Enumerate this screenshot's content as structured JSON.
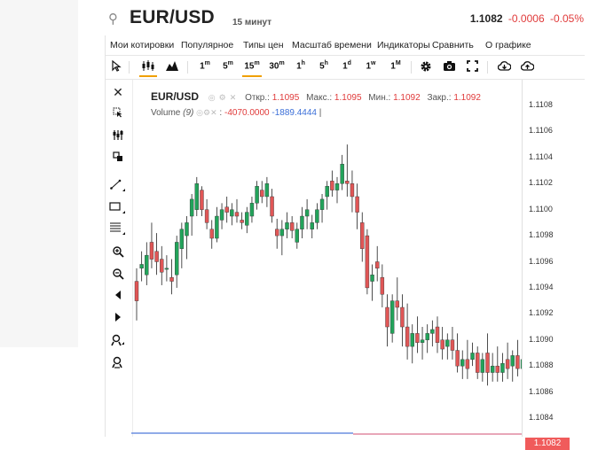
{
  "header": {
    "symbol": "EUR/USD",
    "interval": "15 минут",
    "last_price": "1.1082",
    "change": "-0.0006",
    "change_pct": "-0.05%"
  },
  "menu": [
    "Мои котировки",
    "Популярное",
    "Типы цен",
    "Масштаб времени",
    "Индикаторы",
    "Сравнить",
    "О графике"
  ],
  "timeframes": [
    {
      "n": "1",
      "u": "m"
    },
    {
      "n": "5",
      "u": "m"
    },
    {
      "n": "15",
      "u": "m"
    },
    {
      "n": "30",
      "u": "m"
    },
    {
      "n": "1",
      "u": "h"
    },
    {
      "n": "5",
      "u": "h"
    },
    {
      "n": "1",
      "u": "d"
    },
    {
      "n": "1",
      "u": "w"
    },
    {
      "n": "1",
      "u": "M"
    }
  ],
  "active_timeframe": "15m",
  "legend": {
    "symbol": "EUR/USD",
    "open_label": "Откр.:",
    "open": "1.1095",
    "high_label": "Макс.:",
    "high": "1.1095",
    "low_label": "Мин.:",
    "low": "1.1092",
    "close_label": "Закр.:",
    "close": "1.1092",
    "volume_label": "Volume",
    "volume_period": "(9)",
    "volume_value": "-4070.0000",
    "volume_ma": "-1889.4444",
    "cursor": "|"
  },
  "left_tools": [
    "close-icon",
    "cursor-icon",
    "crosshair-icon",
    "layers-icon",
    "trend-line-icon",
    "rectangle-icon",
    "fib-lines-icon",
    "zoom-in-icon",
    "zoom-out-icon",
    "scroll-left-icon",
    "scroll-right-icon",
    "magnet-add-icon",
    "magnet-icon"
  ],
  "colors": {
    "up": "#22a35a",
    "down": "#e05656",
    "last": "#f05b5b",
    "accent": "#f0a000"
  },
  "chart_data": {
    "type": "candlestick",
    "y_ticks": [
      "1.1108",
      "1.1106",
      "1.1104",
      "1.1102",
      "1.1100",
      "1.1098",
      "1.1096",
      "1.1094",
      "1.1092",
      "1.1090",
      "1.1088",
      "1.1086",
      "1.1084"
    ],
    "ylim": [
      1.1083,
      1.111
    ],
    "last_price_label": "1.1082",
    "candles": [
      [
        1.10945,
        1.10955,
        1.10915,
        1.1093
      ],
      [
        1.10955,
        1.10968,
        1.10945,
        1.10958
      ],
      [
        1.1095,
        1.10975,
        1.10942,
        1.10965
      ],
      [
        1.10975,
        1.1099,
        1.10955,
        1.10962
      ],
      [
        1.10968,
        1.10982,
        1.1095,
        1.1096
      ],
      [
        1.10962,
        1.10972,
        1.10942,
        1.10952
      ],
      [
        1.10955,
        1.10965,
        1.10945,
        1.10955
      ],
      [
        1.10948,
        1.10962,
        1.10935,
        1.10945
      ],
      [
        1.1095,
        1.1098,
        1.1094,
        1.10975
      ],
      [
        1.1097,
        1.1099,
        1.10955,
        1.10985
      ],
      [
        1.1098,
        1.10995,
        1.10962,
        1.1099
      ],
      [
        1.10995,
        1.11012,
        1.1098,
        1.11008
      ],
      [
        1.11,
        1.11025,
        1.10995,
        1.1102
      ],
      [
        1.11015,
        1.11018,
        1.10995,
        1.11
      ],
      [
        1.11,
        1.11008,
        1.10985,
        1.1099
      ],
      [
        1.10985,
        1.10992,
        1.1097,
        1.10978
      ],
      [
        1.10978,
        1.11002,
        1.10975,
        1.10995
      ],
      [
        1.10992,
        1.11005,
        1.10985,
        1.11
      ],
      [
        1.11002,
        1.1101,
        1.1099,
        1.10998
      ],
      [
        1.10995,
        1.11005,
        1.10988,
        1.11
      ],
      [
        1.10998,
        1.11008,
        1.1099,
        1.10995
      ],
      [
        1.10992,
        1.10998,
        1.10985,
        1.1099
      ],
      [
        1.10988,
        1.11002,
        1.10982,
        1.10998
      ],
      [
        1.10995,
        1.1101,
        1.1099,
        1.11005
      ],
      [
        1.11005,
        1.11022,
        1.11,
        1.11018
      ],
      [
        1.11015,
        1.11022,
        1.11005,
        1.1101
      ],
      [
        1.1101,
        1.11025,
        1.11002,
        1.1102
      ],
      [
        1.1101,
        1.11016,
        1.1099,
        1.10995
      ],
      [
        1.10985,
        1.10993,
        1.1097,
        1.1098
      ],
      [
        1.1098,
        1.10992,
        1.10965,
        1.10985
      ],
      [
        1.10985,
        1.10998,
        1.10978,
        1.1099
      ],
      [
        1.1099,
        1.10995,
        1.10978,
        1.10984
      ],
      [
        1.10975,
        1.1099,
        1.1097,
        1.10985
      ],
      [
        1.10985,
        1.11002,
        1.10978,
        1.10995
      ],
      [
        1.10995,
        1.11008,
        1.10985,
        1.11
      ],
      [
        1.10985,
        1.10996,
        1.10978,
        1.1099
      ],
      [
        1.1099,
        1.11005,
        1.10985,
        1.11
      ],
      [
        1.11,
        1.11012,
        1.1099,
        1.11008
      ],
      [
        1.1101,
        1.11022,
        1.11,
        1.11018
      ],
      [
        1.11022,
        1.1103,
        1.1101,
        1.11015
      ],
      [
        1.11015,
        1.11025,
        1.11005,
        1.1102
      ],
      [
        1.1102,
        1.11042,
        1.11015,
        1.11035
      ],
      [
        1.11022,
        1.1105,
        1.1101,
        1.1102
      ],
      [
        1.1102,
        1.1103,
        1.10998,
        1.1101
      ],
      [
        1.1101,
        1.1102,
        1.10985,
        1.10998
      ],
      [
        1.1099,
        1.10998,
        1.1096,
        1.1097
      ],
      [
        1.1098,
        1.10985,
        1.10935,
        1.1094
      ],
      [
        1.10945,
        1.10958,
        1.1093,
        1.1095
      ],
      [
        1.1096,
        1.10972,
        1.10945,
        1.10955
      ],
      [
        1.10948,
        1.10958,
        1.10925,
        1.10935
      ],
      [
        1.10925,
        1.10935,
        1.10895,
        1.1091
      ],
      [
        1.10905,
        1.10935,
        1.10898,
        1.1093
      ],
      [
        1.1093,
        1.10948,
        1.10915,
        1.10925
      ],
      [
        1.10925,
        1.10935,
        1.10895,
        1.1091
      ],
      [
        1.1091,
        1.10928,
        1.10885,
        1.10895
      ],
      [
        1.10895,
        1.10912,
        1.10882,
        1.10905
      ],
      [
        1.10905,
        1.10918,
        1.1089,
        1.10898
      ],
      [
        1.10898,
        1.1091,
        1.10885,
        1.109
      ],
      [
        1.109,
        1.10912,
        1.1089,
        1.10905
      ],
      [
        1.10905,
        1.10915,
        1.10895,
        1.10908
      ],
      [
        1.1091,
        1.10918,
        1.1089,
        1.10898
      ],
      [
        1.109,
        1.1091,
        1.10885,
        1.10893
      ],
      [
        1.10895,
        1.10905,
        1.10885,
        1.109
      ],
      [
        1.109,
        1.1091,
        1.10885,
        1.10892
      ],
      [
        1.10892,
        1.10905,
        1.10875,
        1.1088
      ],
      [
        1.1088,
        1.10892,
        1.1087,
        1.10885
      ],
      [
        1.10885,
        1.109,
        1.1087,
        1.10878
      ],
      [
        1.10885,
        1.10898,
        1.1088,
        1.1089
      ],
      [
        1.1089,
        1.10895,
        1.1087,
        1.10875
      ],
      [
        1.10875,
        1.1089,
        1.10868,
        1.10885
      ],
      [
        1.1089,
        1.10905,
        1.10865,
        1.10875
      ],
      [
        1.10875,
        1.1089,
        1.10868,
        1.1088
      ],
      [
        1.1088,
        1.10895,
        1.10868,
        1.10875
      ],
      [
        1.10875,
        1.1089,
        1.10868,
        1.10882
      ],
      [
        1.10885,
        1.10898,
        1.1087,
        1.10878
      ],
      [
        1.1088,
        1.10892,
        1.10868,
        1.10888
      ],
      [
        1.10888,
        1.109,
        1.10872,
        1.10878
      ],
      [
        1.10878,
        1.1089,
        1.10868,
        1.10885
      ]
    ]
  }
}
